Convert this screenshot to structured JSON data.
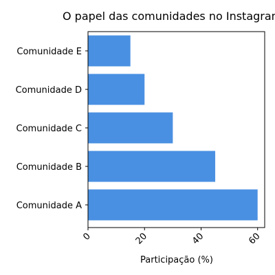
{
  "chart_data": {
    "type": "bar",
    "orientation": "horizontal",
    "title": "O papel das comunidades no Instagram",
    "xlabel": "Participação (%)",
    "ylabel": "",
    "categories": [
      "Comunidade A",
      "Comunidade B",
      "Comunidade C",
      "Comunidade D",
      "Comunidade E"
    ],
    "values": [
      60,
      45,
      30,
      20,
      15
    ],
    "xlim": [
      0,
      62.5
    ],
    "xticks": [
      0,
      20,
      40,
      60
    ],
    "xtick_rotation": "45",
    "grid": false,
    "legend": "none",
    "bar_color": "#4a90e2"
  }
}
